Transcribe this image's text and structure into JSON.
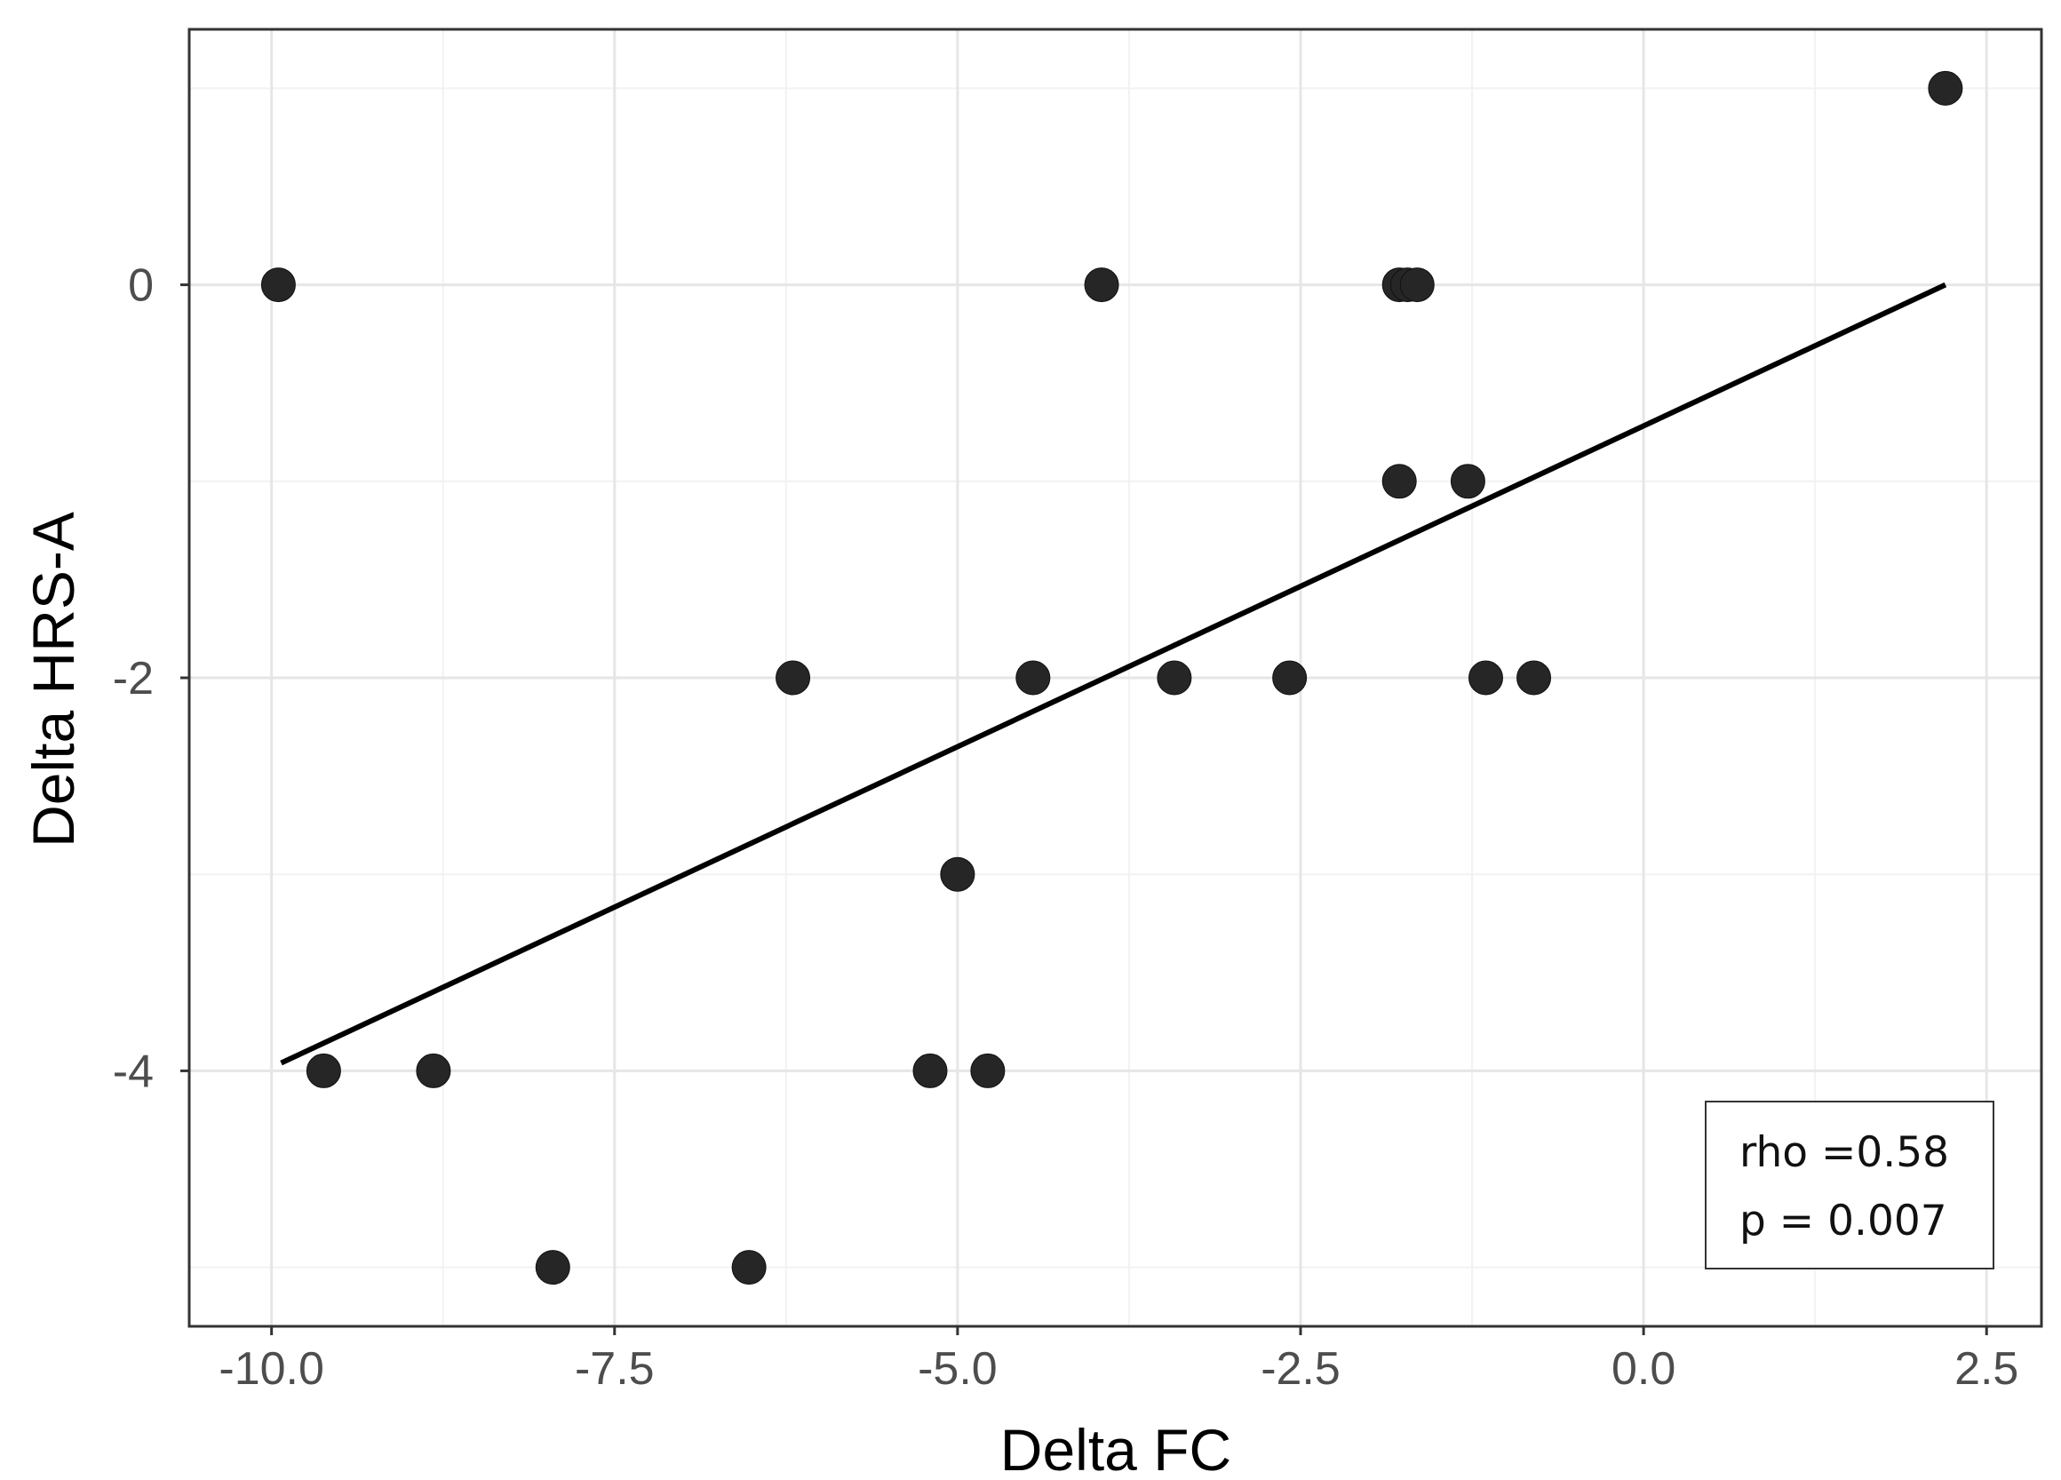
{
  "chart_data": {
    "type": "scatter",
    "title": "",
    "xlabel": "Delta FC",
    "ylabel": "Delta HRS-A",
    "xlim": [
      -10.6,
      2.9
    ],
    "ylim": [
      -5.3,
      1.3
    ],
    "x_ticks": [
      -10.0,
      -7.5,
      -5.0,
      -2.5,
      0.0,
      2.5
    ],
    "x_tick_labels": [
      "-10.0",
      "-7.5",
      "-5.0",
      "-2.5",
      "0.0",
      "2.5"
    ],
    "y_ticks": [
      0,
      -2,
      -4
    ],
    "y_tick_labels": [
      "0",
      "-2",
      "-4"
    ],
    "x_minor_grid": [
      -8.75,
      -6.25,
      -3.75,
      -1.25,
      1.25
    ],
    "y_minor_grid": [
      1,
      -1,
      -3,
      -5
    ],
    "grid": true,
    "series": [
      {
        "name": "observations",
        "x": [
          2.2,
          -9.95,
          -3.95,
          -1.78,
          -1.72,
          -1.65,
          -1.78,
          -1.28,
          -6.2,
          -4.45,
          -3.42,
          -2.58,
          -1.15,
          -0.8,
          -5.0,
          -9.62,
          -8.82,
          -5.2,
          -4.78,
          -7.95,
          -6.52
        ],
        "y": [
          1,
          0,
          0,
          0,
          0,
          0,
          -1,
          -1,
          -2,
          -2,
          -2,
          -2,
          -2,
          -2,
          -3,
          -4,
          -4,
          -4,
          -4,
          -5,
          -5
        ]
      }
    ],
    "fit_line": {
      "x": [
        -9.93,
        2.2
      ],
      "y": [
        -3.96,
        0.0
      ]
    },
    "annotation": {
      "lines": [
        "rho =0.58",
        "p = 0.007"
      ],
      "placement": "bottom-right"
    },
    "colors": {
      "point": "#262626",
      "line": "#000000",
      "grid_major": "#e6e6e6",
      "grid_minor": "#f2f2f2",
      "border": "#333333"
    }
  }
}
